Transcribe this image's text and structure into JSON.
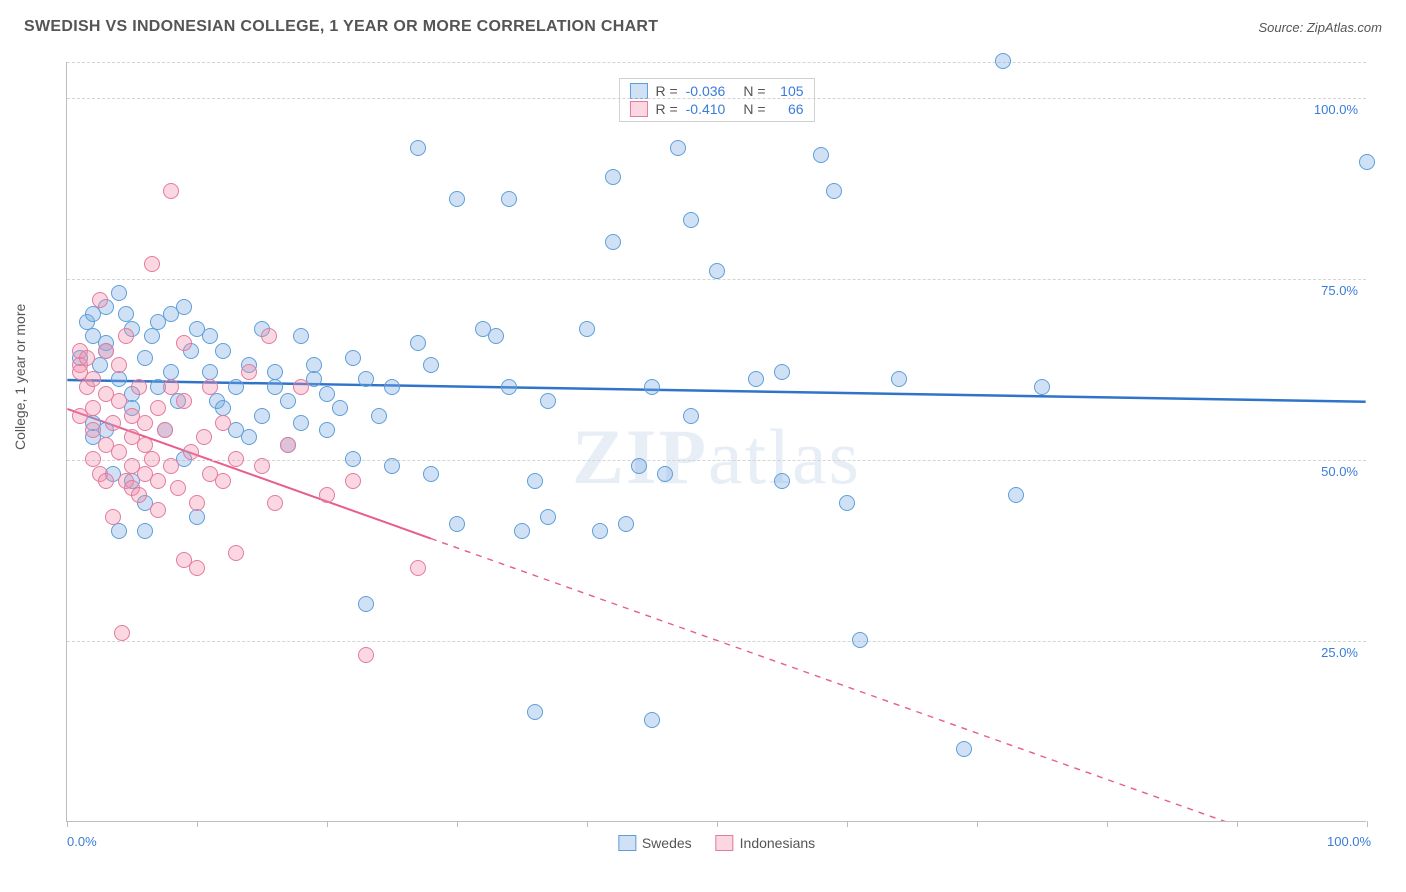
{
  "title": "SWEDISH VS INDONESIAN COLLEGE, 1 YEAR OR MORE CORRELATION CHART",
  "source_prefix": "Source: ",
  "source_link": "ZipAtlas.com",
  "y_axis_title": "College, 1 year or more",
  "watermark": "ZIPatlas",
  "chart": {
    "type": "scatter",
    "xlim": [
      0,
      100
    ],
    "ylim": [
      0,
      105
    ],
    "x_ticks": [
      0,
      10,
      20,
      30,
      40,
      50,
      60,
      70,
      80,
      90,
      100
    ],
    "y_gridlines": [
      25,
      50,
      75,
      100,
      105
    ],
    "x_labels": [
      {
        "v": 0,
        "t": "0.0%"
      },
      {
        "v": 100,
        "t": "100.0%"
      }
    ],
    "y_labels": [
      {
        "v": 25,
        "t": "25.0%"
      },
      {
        "v": 50,
        "t": "50.0%"
      },
      {
        "v": 75,
        "t": "75.0%"
      },
      {
        "v": 100,
        "t": "100.0%"
      }
    ],
    "background_color": "#ffffff",
    "grid_color": "#d4d4d4",
    "axis_color": "#bdbdbd",
    "label_color": "#3a7cd8",
    "title_color": "#555555",
    "title_fontsize": 16,
    "label_fontsize": 13,
    "marker_radius": 8,
    "marker_stroke_width": 1.4,
    "series": [
      {
        "name": "Swedes",
        "fill": "rgba(120,170,225,0.35)",
        "stroke": "#5d9fda",
        "r_label": "R =",
        "r_value": "-0.036",
        "n_label": "N =",
        "n_value": "105",
        "trend": {
          "x1": 0,
          "y1": 61,
          "x2": 100,
          "y2": 58,
          "color": "#2f74c9",
          "width": 2.5,
          "solid_until_x": 100
        },
        "points": [
          [
            1,
            64
          ],
          [
            1.5,
            69
          ],
          [
            2,
            67
          ],
          [
            2,
            55
          ],
          [
            2,
            70
          ],
          [
            2.5,
            63
          ],
          [
            3,
            71
          ],
          [
            3,
            66
          ],
          [
            3,
            65
          ],
          [
            3,
            54
          ],
          [
            3.5,
            48
          ],
          [
            4,
            61
          ],
          [
            4,
            73
          ],
          [
            4.5,
            70
          ],
          [
            5,
            59
          ],
          [
            5,
            68
          ],
          [
            5,
            57
          ],
          [
            5,
            47
          ],
          [
            6,
            64
          ],
          [
            6,
            44
          ],
          [
            6.5,
            67
          ],
          [
            7,
            60
          ],
          [
            7,
            69
          ],
          [
            7.5,
            54
          ],
          [
            8,
            62
          ],
          [
            8,
            70
          ],
          [
            8.5,
            58
          ],
          [
            9,
            50
          ],
          [
            9,
            71
          ],
          [
            9.5,
            65
          ],
          [
            10,
            68
          ],
          [
            10,
            42
          ],
          [
            11,
            62
          ],
          [
            11,
            67
          ],
          [
            11.5,
            58
          ],
          [
            12,
            57
          ],
          [
            12,
            65
          ],
          [
            13,
            60
          ],
          [
            13,
            54
          ],
          [
            14,
            63
          ],
          [
            14,
            53
          ],
          [
            15,
            56
          ],
          [
            15,
            68
          ],
          [
            16,
            62
          ],
          [
            16,
            60
          ],
          [
            17,
            58
          ],
          [
            17,
            52
          ],
          [
            18,
            67
          ],
          [
            18,
            55
          ],
          [
            19,
            61
          ],
          [
            19,
            63
          ],
          [
            20,
            59
          ],
          [
            20,
            54
          ],
          [
            21,
            57
          ],
          [
            22,
            50
          ],
          [
            22,
            64
          ],
          [
            23,
            30
          ],
          [
            23,
            61
          ],
          [
            24,
            56
          ],
          [
            25,
            60
          ],
          [
            25,
            49
          ],
          [
            27,
            66
          ],
          [
            27,
            93
          ],
          [
            28,
            63
          ],
          [
            28,
            48
          ],
          [
            30,
            41
          ],
          [
            30,
            86
          ],
          [
            32,
            68
          ],
          [
            33,
            67
          ],
          [
            34,
            60
          ],
          [
            34,
            86
          ],
          [
            35,
            40
          ],
          [
            36,
            47
          ],
          [
            36,
            15
          ],
          [
            37,
            42
          ],
          [
            37,
            58
          ],
          [
            40,
            68
          ],
          [
            41,
            40
          ],
          [
            42,
            80
          ],
          [
            42,
            89
          ],
          [
            43,
            41
          ],
          [
            44,
            49
          ],
          [
            45,
            60
          ],
          [
            45,
            14
          ],
          [
            46,
            48
          ],
          [
            47,
            93
          ],
          [
            48,
            56
          ],
          [
            48,
            83
          ],
          [
            50,
            76
          ],
          [
            53,
            61
          ],
          [
            55,
            62
          ],
          [
            55,
            47
          ],
          [
            58,
            92
          ],
          [
            59,
            87
          ],
          [
            60,
            44
          ],
          [
            61,
            25
          ],
          [
            64,
            61
          ],
          [
            69,
            10
          ],
          [
            72,
            105
          ],
          [
            73,
            45
          ],
          [
            75,
            60
          ],
          [
            100,
            91
          ],
          [
            2,
            53
          ],
          [
            4,
            40
          ],
          [
            6,
            40
          ]
        ]
      },
      {
        "name": "Indonesians",
        "fill": "rgba(240,140,170,0.35)",
        "stroke": "#e37ba0",
        "r_label": "R =",
        "r_value": "-0.410",
        "n_label": "N =",
        "n_value": "66",
        "trend": {
          "x1": 0,
          "y1": 57,
          "x2": 100,
          "y2": -7,
          "color": "#e85d8d",
          "width": 2,
          "solid_until_x": 28
        },
        "points": [
          [
            1,
            65
          ],
          [
            1,
            63
          ],
          [
            1,
            62
          ],
          [
            1,
            56
          ],
          [
            1.5,
            60
          ],
          [
            1.5,
            64
          ],
          [
            2,
            54
          ],
          [
            2,
            61
          ],
          [
            2,
            57
          ],
          [
            2,
            50
          ],
          [
            2.5,
            72
          ],
          [
            2.5,
            48
          ],
          [
            3,
            52
          ],
          [
            3,
            59
          ],
          [
            3,
            47
          ],
          [
            3,
            65
          ],
          [
            3.5,
            55
          ],
          [
            3.5,
            42
          ],
          [
            4,
            63
          ],
          [
            4,
            51
          ],
          [
            4,
            58
          ],
          [
            4.2,
            26
          ],
          [
            4.5,
            47
          ],
          [
            4.5,
            67
          ],
          [
            5,
            56
          ],
          [
            5,
            49
          ],
          [
            5,
            46
          ],
          [
            5,
            53
          ],
          [
            5.5,
            60
          ],
          [
            5.5,
            45
          ],
          [
            6,
            52
          ],
          [
            6,
            48
          ],
          [
            6,
            55
          ],
          [
            6.5,
            77
          ],
          [
            6.5,
            50
          ],
          [
            7,
            57
          ],
          [
            7,
            47
          ],
          [
            7,
            43
          ],
          [
            7.5,
            54
          ],
          [
            8,
            60
          ],
          [
            8,
            87
          ],
          [
            8,
            49
          ],
          [
            8.5,
            46
          ],
          [
            9,
            58
          ],
          [
            9,
            36
          ],
          [
            9,
            66
          ],
          [
            9.5,
            51
          ],
          [
            10,
            44
          ],
          [
            10,
            35
          ],
          [
            10.5,
            53
          ],
          [
            11,
            48
          ],
          [
            11,
            60
          ],
          [
            12,
            47
          ],
          [
            12,
            55
          ],
          [
            13,
            50
          ],
          [
            13,
            37
          ],
          [
            14,
            62
          ],
          [
            15,
            49
          ],
          [
            15.5,
            67
          ],
          [
            16,
            44
          ],
          [
            17,
            52
          ],
          [
            18,
            60
          ],
          [
            20,
            45
          ],
          [
            22,
            47
          ],
          [
            23,
            23
          ],
          [
            27,
            35
          ]
        ]
      }
    ]
  }
}
